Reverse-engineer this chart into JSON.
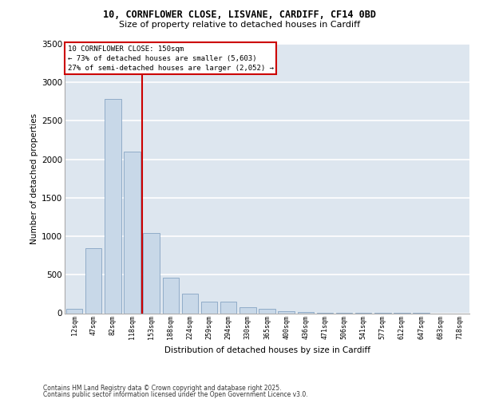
{
  "title_line1": "10, CORNFLOWER CLOSE, LISVANE, CARDIFF, CF14 0BD",
  "title_line2": "Size of property relative to detached houses in Cardiff",
  "xlabel": "Distribution of detached houses by size in Cardiff",
  "ylabel": "Number of detached properties",
  "categories": [
    "12sqm",
    "47sqm",
    "82sqm",
    "118sqm",
    "153sqm",
    "188sqm",
    "224sqm",
    "259sqm",
    "294sqm",
    "330sqm",
    "365sqm",
    "400sqm",
    "436sqm",
    "471sqm",
    "506sqm",
    "541sqm",
    "577sqm",
    "612sqm",
    "647sqm",
    "683sqm",
    "718sqm"
  ],
  "values": [
    55,
    850,
    2780,
    2100,
    1040,
    460,
    250,
    150,
    150,
    75,
    60,
    30,
    15,
    10,
    5,
    3,
    2,
    1,
    1,
    0,
    0
  ],
  "bar_color": "#c8d8e8",
  "bar_edge_color": "#7799bb",
  "vline_color": "#cc0000",
  "vline_x": 3.5,
  "annotation_text": "10 CORNFLOWER CLOSE: 150sqm\n← 73% of detached houses are smaller (5,603)\n27% of semi-detached houses are larger (2,052) →",
  "annotation_box_edgecolor": "#cc0000",
  "annotation_bg": "white",
  "ylim_max": 3500,
  "yticks": [
    0,
    500,
    1000,
    1500,
    2000,
    2500,
    3000,
    3500
  ],
  "background_color": "#dde6ef",
  "grid_color": "white",
  "footer_line1": "Contains HM Land Registry data © Crown copyright and database right 2025.",
  "footer_line2": "Contains public sector information licensed under the Open Government Licence v3.0."
}
